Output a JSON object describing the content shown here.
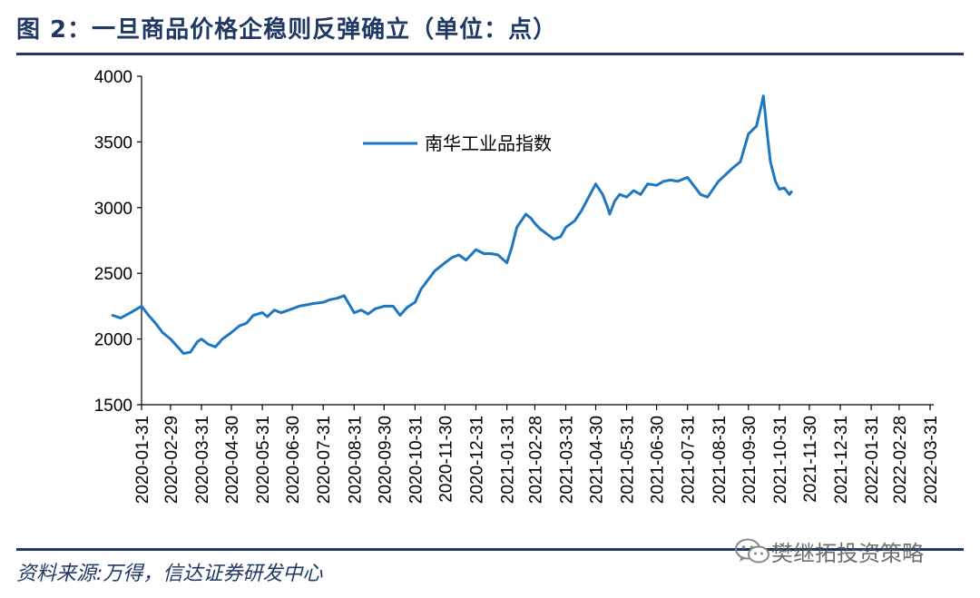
{
  "header": {
    "title": "图 2：一旦商品价格企稳则反弹确立（单位：点）"
  },
  "footer": {
    "source": "资料来源:万得，信达证券研发中心",
    "watermark": "樊继拓投资策略"
  },
  "chart_data": {
    "type": "line",
    "title": "",
    "xlabel": "",
    "ylabel": "",
    "ylim": [
      1500,
      4000
    ],
    "yticks": [
      1500,
      2000,
      2500,
      3000,
      3500,
      4000
    ],
    "x_tick_labels": [
      "2020-01-31",
      "2020-02-29",
      "2020-03-31",
      "2020-04-30",
      "2020-05-31",
      "2020-06-30",
      "2020-07-31",
      "2020-08-31",
      "2020-09-30",
      "2020-10-31",
      "2020-11-30",
      "2020-12-31",
      "2021-01-31",
      "2021-02-28",
      "2021-03-31",
      "2021-04-30",
      "2021-05-31",
      "2021-06-30",
      "2021-07-31",
      "2021-08-31",
      "2021-09-30",
      "2021-10-31",
      "2021-11-30",
      "2021-12-31",
      "2022-01-31",
      "2022-02-28",
      "2022-03-31"
    ],
    "legend_position": "top-center",
    "grid": false,
    "series": [
      {
        "name": "南华工业品指数",
        "color": "#1f77c0",
        "x": [
          "2020-01-02",
          "2020-01-10",
          "2020-01-20",
          "2020-01-31",
          "2020-02-07",
          "2020-02-14",
          "2020-02-21",
          "2020-02-29",
          "2020-03-06",
          "2020-03-13",
          "2020-03-20",
          "2020-03-27",
          "2020-03-31",
          "2020-04-07",
          "2020-04-14",
          "2020-04-21",
          "2020-04-30",
          "2020-05-08",
          "2020-05-15",
          "2020-05-22",
          "2020-05-31",
          "2020-06-05",
          "2020-06-12",
          "2020-06-19",
          "2020-06-30",
          "2020-07-07",
          "2020-07-14",
          "2020-07-21",
          "2020-07-31",
          "2020-08-07",
          "2020-08-14",
          "2020-08-21",
          "2020-08-31",
          "2020-09-07",
          "2020-09-14",
          "2020-09-21",
          "2020-09-30",
          "2020-10-09",
          "2020-10-16",
          "2020-10-23",
          "2020-10-31",
          "2020-11-06",
          "2020-11-13",
          "2020-11-20",
          "2020-11-30",
          "2020-12-07",
          "2020-12-14",
          "2020-12-21",
          "2020-12-31",
          "2021-01-08",
          "2021-01-15",
          "2021-01-22",
          "2021-01-31",
          "2021-02-05",
          "2021-02-10",
          "2021-02-19",
          "2021-02-24",
          "2021-02-28",
          "2021-03-05",
          "2021-03-12",
          "2021-03-19",
          "2021-03-26",
          "2021-03-31",
          "2021-04-09",
          "2021-04-16",
          "2021-04-23",
          "2021-04-30",
          "2021-05-07",
          "2021-05-12",
          "2021-05-14",
          "2021-05-19",
          "2021-05-24",
          "2021-05-31",
          "2021-06-07",
          "2021-06-14",
          "2021-06-21",
          "2021-06-30",
          "2021-07-07",
          "2021-07-14",
          "2021-07-21",
          "2021-07-31",
          "2021-08-06",
          "2021-08-13",
          "2021-08-20",
          "2021-08-31",
          "2021-09-07",
          "2021-09-14",
          "2021-09-22",
          "2021-09-30",
          "2021-10-08",
          "2021-10-13",
          "2021-10-15",
          "2021-10-19",
          "2021-10-22",
          "2021-10-27",
          "2021-10-31",
          "2021-11-05",
          "2021-11-10",
          "2021-11-12"
        ],
        "values": [
          2180,
          2160,
          2200,
          2250,
          2180,
          2120,
          2050,
          2000,
          1950,
          1890,
          1900,
          1980,
          2000,
          1960,
          1940,
          2000,
          2050,
          2100,
          2120,
          2180,
          2200,
          2170,
          2220,
          2200,
          2230,
          2250,
          2260,
          2270,
          2280,
          2300,
          2310,
          2330,
          2200,
          2220,
          2190,
          2230,
          2250,
          2250,
          2180,
          2240,
          2280,
          2380,
          2450,
          2520,
          2580,
          2620,
          2640,
          2600,
          2680,
          2650,
          2650,
          2640,
          2580,
          2700,
          2850,
          2950,
          2920,
          2880,
          2840,
          2800,
          2760,
          2780,
          2850,
          2900,
          2980,
          3080,
          3180,
          3100,
          3000,
          2950,
          3050,
          3100,
          3080,
          3130,
          3100,
          3180,
          3170,
          3200,
          3210,
          3200,
          3230,
          3170,
          3100,
          3080,
          3200,
          3250,
          3300,
          3350,
          3560,
          3620,
          3780,
          3850,
          3550,
          3350,
          3200,
          3140,
          3150,
          3100,
          3120
        ]
      }
    ]
  }
}
